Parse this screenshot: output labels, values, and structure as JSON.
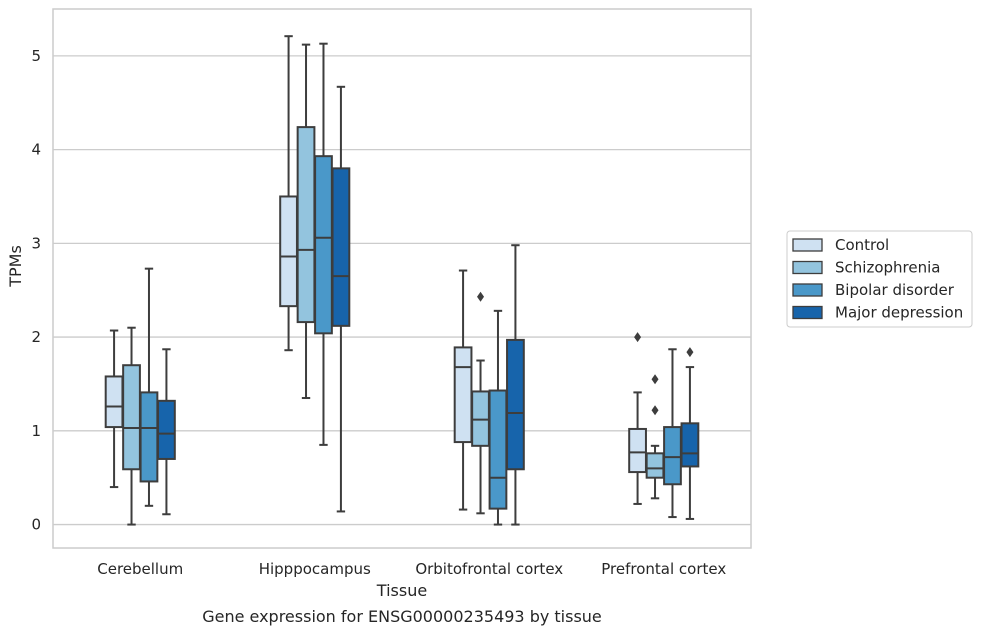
{
  "chart_data": {
    "type": "boxplot",
    "caption": "Gene expression for ENSG00000235493 by tissue",
    "xlabel": "Tissue",
    "ylabel": "TPMs",
    "ylim": [
      -0.25,
      5.5
    ],
    "yticks": [
      0,
      1,
      2,
      3,
      4,
      5
    ],
    "grid": true,
    "legend_position": "right",
    "categories": [
      "Cerebellum",
      "Hipppocampus",
      "Orbitofrontal cortex",
      "Prefrontal cortex"
    ],
    "series": [
      {
        "name": "Control",
        "color": "#cfe1f2",
        "boxes": [
          {
            "whislo": 0.4,
            "q1": 1.04,
            "med": 1.26,
            "q3": 1.58,
            "whishi": 2.07,
            "fliers": []
          },
          {
            "whislo": 1.86,
            "q1": 2.33,
            "med": 2.86,
            "q3": 3.5,
            "whishi": 5.21,
            "fliers": []
          },
          {
            "whislo": 0.16,
            "q1": 0.88,
            "med": 1.68,
            "q3": 1.89,
            "whishi": 2.71,
            "fliers": []
          },
          {
            "whislo": 0.22,
            "q1": 0.56,
            "med": 0.77,
            "q3": 1.02,
            "whishi": 1.41,
            "fliers": [
              2.0
            ]
          }
        ]
      },
      {
        "name": "Schizophrenia",
        "color": "#93c4de",
        "boxes": [
          {
            "whislo": 0.0,
            "q1": 0.59,
            "med": 1.03,
            "q3": 1.7,
            "whishi": 2.1,
            "fliers": []
          },
          {
            "whislo": 1.35,
            "q1": 2.16,
            "med": 2.93,
            "q3": 4.24,
            "whishi": 5.12,
            "fliers": []
          },
          {
            "whislo": 0.12,
            "q1": 0.84,
            "med": 1.12,
            "q3": 1.42,
            "whishi": 1.75,
            "fliers": [
              2.43
            ]
          },
          {
            "whislo": 0.28,
            "q1": 0.5,
            "med": 0.6,
            "q3": 0.76,
            "whishi": 0.84,
            "fliers": [
              1.22,
              1.55
            ]
          }
        ]
      },
      {
        "name": "Bipolar disorder",
        "color": "#4a98c9",
        "boxes": [
          {
            "whislo": 0.2,
            "q1": 0.46,
            "med": 1.03,
            "q3": 1.41,
            "whishi": 2.73,
            "fliers": []
          },
          {
            "whislo": 0.85,
            "q1": 2.04,
            "med": 3.06,
            "q3": 3.93,
            "whishi": 5.13,
            "fliers": []
          },
          {
            "whislo": 0.0,
            "q1": 0.17,
            "med": 0.5,
            "q3": 1.43,
            "whishi": 2.28,
            "fliers": []
          },
          {
            "whislo": 0.08,
            "q1": 0.43,
            "med": 0.72,
            "q3": 1.04,
            "whishi": 1.87,
            "fliers": []
          }
        ]
      },
      {
        "name": "Major depression",
        "color": "#1764ab",
        "boxes": [
          {
            "whislo": 0.11,
            "q1": 0.7,
            "med": 0.97,
            "q3": 1.32,
            "whishi": 1.87,
            "fliers": []
          },
          {
            "whislo": 0.14,
            "q1": 2.12,
            "med": 2.65,
            "q3": 3.8,
            "whishi": 4.67,
            "fliers": []
          },
          {
            "whislo": 0.0,
            "q1": 0.59,
            "med": 1.19,
            "q3": 1.97,
            "whishi": 2.98,
            "fliers": []
          },
          {
            "whislo": 0.06,
            "q1": 0.62,
            "med": 0.76,
            "q3": 1.08,
            "whishi": 1.68,
            "fliers": [
              1.84
            ]
          }
        ]
      }
    ]
  }
}
